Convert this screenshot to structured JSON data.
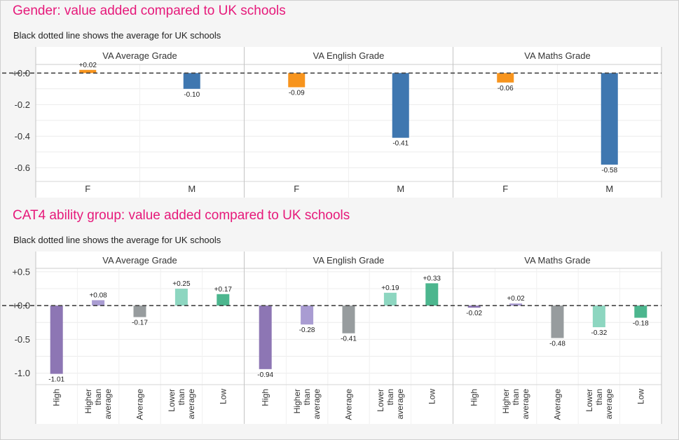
{
  "sections": [
    {
      "title": "Gender: value added compared to UK schools",
      "subtitle": "Black dotted line shows the average for UK schools"
    },
    {
      "title": "CAT4 ability group: value added compared to UK schools",
      "subtitle": "Black dotted line shows the average for UK schools"
    }
  ],
  "colors": {
    "title": "#e6197a",
    "female": "#f7941d",
    "male": "#3f77b0",
    "high": "#8d76b4",
    "higher_than_average": "#a99cd2",
    "average": "#979c9e",
    "lower_than_average": "#8dd6c0",
    "low": "#4cb68e",
    "reference_line": "#444444"
  },
  "chart_data": [
    {
      "type": "bar",
      "panels": [
        "VA Average Grade",
        "VA English Grade",
        "VA Maths Grade"
      ],
      "categories": [
        "F",
        "M"
      ],
      "values": [
        [
          0.02,
          -0.1
        ],
        [
          -0.09,
          -0.41
        ],
        [
          -0.06,
          -0.58
        ]
      ],
      "labels": [
        [
          "+0.02",
          "-0.10"
        ],
        [
          "-0.09",
          "-0.41"
        ],
        [
          "-0.06",
          "-0.58"
        ]
      ],
      "yticks": [
        "+0.0",
        "-0.2",
        "-0.4",
        "-0.6"
      ],
      "ytick_values": [
        0,
        -0.2,
        -0.4,
        -0.6
      ],
      "ylim": [
        -0.7,
        0.05
      ],
      "reference_line": 0,
      "grid": true
    },
    {
      "type": "bar",
      "panels": [
        "VA Average Grade",
        "VA English Grade",
        "VA Maths Grade"
      ],
      "categories": [
        "High",
        "Higher than average",
        "Average",
        "Lower than average",
        "Low"
      ],
      "values": [
        [
          -1.01,
          0.08,
          -0.17,
          0.25,
          0.17
        ],
        [
          -0.94,
          -0.28,
          -0.41,
          0.19,
          0.33
        ],
        [
          -0.02,
          0.02,
          -0.48,
          -0.32,
          -0.18
        ]
      ],
      "labels": [
        [
          "-1.01",
          "+0.08",
          "-0.17",
          "+0.25",
          "+0.17"
        ],
        [
          "-0.94",
          "-0.28",
          "-0.41",
          "+0.19",
          "+0.33"
        ],
        [
          "-0.02",
          "+0.02",
          "-0.48",
          "-0.32",
          "-0.18"
        ]
      ],
      "yticks": [
        "+0.5",
        "+0.0",
        "-0.5",
        "-1.0"
      ],
      "ytick_values": [
        0.5,
        0,
        -0.5,
        -1.0
      ],
      "ylim": [
        -1.18,
        0.52
      ],
      "reference_line": 0,
      "grid": true
    }
  ]
}
